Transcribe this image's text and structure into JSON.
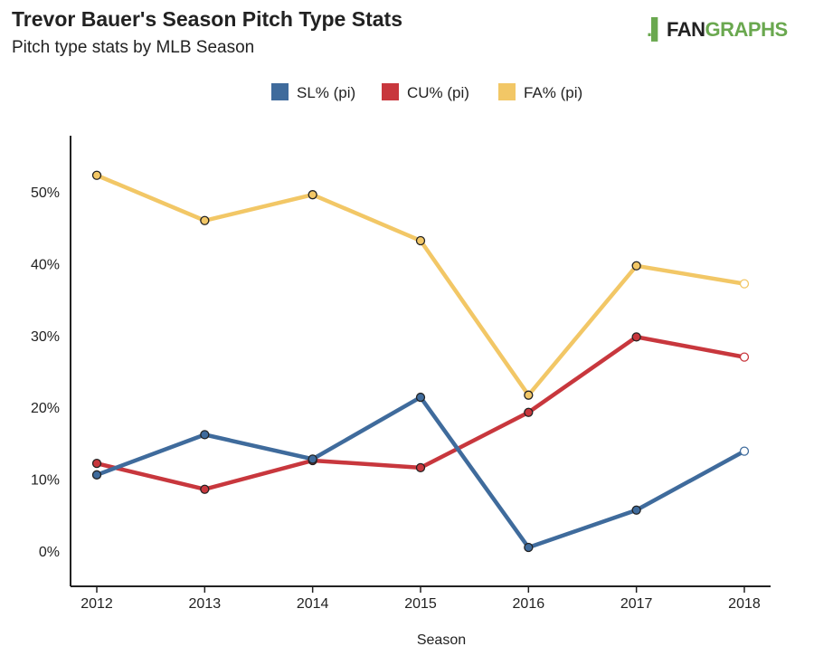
{
  "header": {
    "title": "Trevor Bauer's Season Pitch Type Stats",
    "subtitle": "Pitch type stats by MLB Season",
    "logo_a": "FAN",
    "logo_b": "GRAPHS"
  },
  "chart_data": {
    "type": "line",
    "title": "Trevor Bauer's Season Pitch Type Stats",
    "subtitle": "Pitch type stats by MLB Season",
    "xlabel": "Season",
    "ylabel": "",
    "x": [
      "2012",
      "2013",
      "2014",
      "2015",
      "2016",
      "2017",
      "2018"
    ],
    "ylim": [
      -4.5,
      58
    ],
    "yticks": [
      0,
      10,
      20,
      30,
      40,
      50
    ],
    "ytick_labels": [
      "0%",
      "10%",
      "20%",
      "30%",
      "40%",
      "50%"
    ],
    "legend_position": "top-center",
    "series": [
      {
        "name": "SL% (pi)",
        "color": "#3f6b9c",
        "values": [
          10.6,
          16.2,
          12.8,
          21.4,
          0.5,
          5.7,
          13.9
        ]
      },
      {
        "name": "CU% (pi)",
        "color": "#c8373d",
        "values": [
          12.2,
          8.6,
          12.6,
          11.6,
          19.3,
          29.8,
          27.0
        ]
      },
      {
        "name": "FA% (pi)",
        "color": "#f2c766",
        "values": [
          52.3,
          46.0,
          49.6,
          43.2,
          21.7,
          39.7,
          37.2
        ]
      }
    ]
  }
}
